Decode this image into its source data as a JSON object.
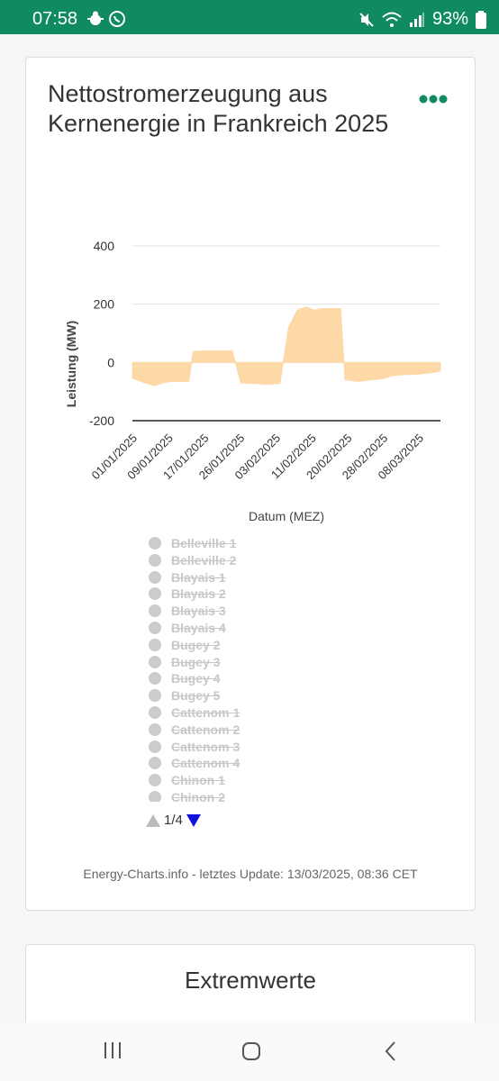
{
  "status_bar": {
    "time": "07:58",
    "battery": "93%",
    "icons": [
      "bug-icon",
      "whatsapp-icon",
      "mute-icon",
      "wifi-icon",
      "signal-icon",
      "battery-icon"
    ]
  },
  "card": {
    "title": "Nettostromerzeugung aus Kernenergie in Frankreich 2025",
    "menu_icon": "more-dots-icon",
    "credits": "Energy-Charts.info - letztes Update: 13/03/2025, 08:36 CET"
  },
  "chart_data": {
    "type": "area",
    "title": "Nettostromerzeugung aus Kernenergie in Frankreich 2025",
    "xlabel": "Datum (MEZ)",
    "ylabel": "Leistung (MW)",
    "ylim": [
      -200,
      400
    ],
    "yticks": [
      "400",
      "200",
      "0",
      "-200"
    ],
    "yticks_values": [
      400,
      200,
      0,
      -200
    ],
    "xticks": [
      "01/01/2025",
      "09/01/2025",
      "17/01/2025",
      "26/01/2025",
      "03/02/2025",
      "11/02/2025",
      "20/02/2025",
      "28/02/2025",
      "08/03/2025"
    ],
    "xlim": [
      "2025-01-01",
      "2025-03-13"
    ],
    "grid": true,
    "series": [
      {
        "color": "#fdd9a8",
        "points": [
          [
            "2025-01-01",
            -55
          ],
          [
            "2025-01-04",
            -70
          ],
          [
            "2025-01-06",
            -80
          ],
          [
            "2025-01-08",
            -70
          ],
          [
            "2025-01-10",
            -65
          ],
          [
            "2025-01-14",
            -65
          ],
          [
            "2025-01-15",
            38
          ],
          [
            "2025-01-18",
            40
          ],
          [
            "2025-01-20",
            40
          ],
          [
            "2025-01-24",
            40
          ],
          [
            "2025-01-26",
            -70
          ],
          [
            "2025-01-29",
            -72
          ],
          [
            "2025-02-01",
            -75
          ],
          [
            "2025-02-04",
            -72
          ],
          [
            "2025-02-06",
            120
          ],
          [
            "2025-02-08",
            180
          ],
          [
            "2025-02-10",
            190
          ],
          [
            "2025-02-12",
            180
          ],
          [
            "2025-02-14",
            185
          ],
          [
            "2025-02-18",
            185
          ],
          [
            "2025-02-19",
            -60
          ],
          [
            "2025-02-22",
            -65
          ],
          [
            "2025-02-25",
            -60
          ],
          [
            "2025-02-28",
            -55
          ],
          [
            "2025-03-02",
            -45
          ],
          [
            "2025-03-05",
            -42
          ],
          [
            "2025-03-08",
            -40
          ],
          [
            "2025-03-11",
            -35
          ],
          [
            "2025-03-13",
            -30
          ]
        ]
      }
    ]
  },
  "legend": {
    "items": [
      "Belleville 1",
      "Belleville 2",
      "Blayais 1",
      "Blayais 2",
      "Blayais 3",
      "Blayais 4",
      "Bugey 2",
      "Bugey 3",
      "Bugey 4",
      "Bugey 5",
      "Cattenom 1",
      "Cattenom 2",
      "Cattenom 3",
      "Cattenom 4",
      "Chinon 1",
      "Chinon 2"
    ],
    "page": "1/4"
  },
  "card2": {
    "title": "Extremwerte"
  },
  "nav_bar": {
    "icons": [
      "recent-apps-icon",
      "home-icon",
      "back-icon"
    ]
  }
}
